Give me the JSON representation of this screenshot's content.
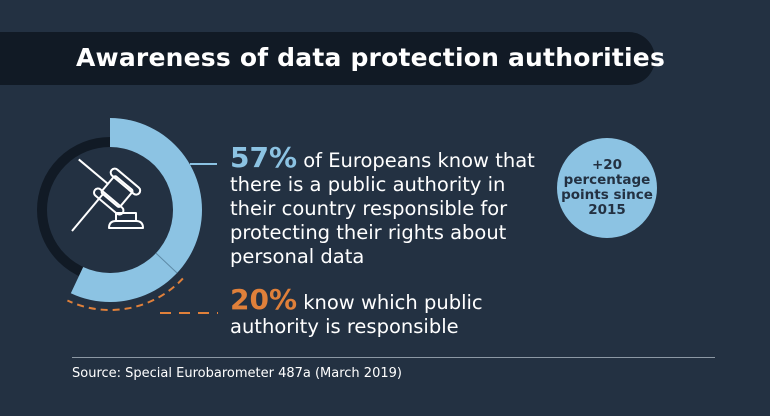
{
  "title": "Awareness of data protection authorities",
  "stats": [
    {
      "value": "57%",
      "text": " of Europeans know that there is a public authority in their country responsible for protecting their rights about personal data"
    },
    {
      "value": "20%",
      "text": " know which public authority is responsible"
    }
  ],
  "bubble": {
    "text": "+20 percentage points since 2015"
  },
  "source": "Source: Special Eurobarometer 487a (March 2019)",
  "icon": "gavel-icon",
  "colors": {
    "background": "#233142",
    "banner": "#111a25",
    "accent_blue": "#8cc3e3",
    "accent_orange": "#e0803a"
  },
  "chart_data": {
    "type": "pie",
    "categories": [
      "Know there is a public authority",
      "Know which authority is responsible"
    ],
    "values": [
      57,
      20
    ],
    "unit": "%"
  }
}
